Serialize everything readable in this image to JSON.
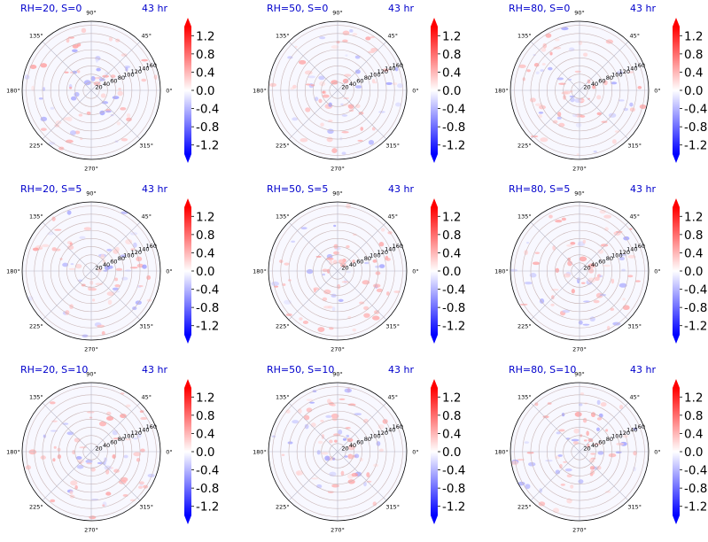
{
  "figure": {
    "common": {
      "type": "polar-heatmap",
      "time_label": "43 hr",
      "radial_ticks": [
        "20",
        "40",
        "60",
        "80",
        "100",
        "120",
        "140",
        "160"
      ],
      "angle_ticks": [
        "0°",
        "45°",
        "90°",
        "135°",
        "180°",
        "225°",
        "270°",
        "315°"
      ],
      "colorbar": {
        "cmap": "bwr",
        "range": [
          -1.4,
          1.4
        ],
        "ticks": [
          "1.2",
          "0.8",
          "0.4",
          "0.0",
          "-0.4",
          "-0.8",
          "-1.2"
        ],
        "extend": "both",
        "colors": {
          "max": "#ff0000",
          "mid": "#ffffff",
          "min": "#0000ff"
        }
      },
      "title_color": "#0000cc"
    },
    "panels": [
      {
        "title": "RH=20, S=0"
      },
      {
        "title": "RH=50, S=0"
      },
      {
        "title": "RH=80, S=0"
      },
      {
        "title": "RH=20, S=5"
      },
      {
        "title": "RH=50, S=5"
      },
      {
        "title": "RH=80, S=5"
      },
      {
        "title": "RH=20, S=10"
      },
      {
        "title": "RH=50, S=10"
      },
      {
        "title": "RH=80, S=10"
      }
    ]
  },
  "chart_data": [
    {
      "type": "heatmap",
      "projection": "polar",
      "title": "RH=20, S=0",
      "annotation": "43 hr",
      "rlim": [
        0,
        170
      ],
      "clim": [
        -1.4,
        1.4
      ],
      "colorbar_ticks": [
        1.2,
        0.8,
        0.4,
        0.0,
        -0.4,
        -0.8,
        -1.2
      ]
    },
    {
      "type": "heatmap",
      "projection": "polar",
      "title": "RH=50, S=0",
      "annotation": "43 hr",
      "rlim": [
        0,
        170
      ],
      "clim": [
        -1.4,
        1.4
      ],
      "colorbar_ticks": [
        1.2,
        0.8,
        0.4,
        0.0,
        -0.4,
        -0.8,
        -1.2
      ]
    },
    {
      "type": "heatmap",
      "projection": "polar",
      "title": "RH=80, S=0",
      "annotation": "43 hr",
      "rlim": [
        0,
        170
      ],
      "clim": [
        -1.4,
        1.4
      ],
      "colorbar_ticks": [
        1.2,
        0.8,
        0.4,
        0.0,
        -0.4,
        -0.8,
        -1.2
      ]
    },
    {
      "type": "heatmap",
      "projection": "polar",
      "title": "RH=20, S=5",
      "annotation": "43 hr",
      "rlim": [
        0,
        170
      ],
      "clim": [
        -1.4,
        1.4
      ],
      "colorbar_ticks": [
        1.2,
        0.8,
        0.4,
        0.0,
        -0.4,
        -0.8,
        -1.2
      ]
    },
    {
      "type": "heatmap",
      "projection": "polar",
      "title": "RH=50, S=5",
      "annotation": "43 hr",
      "rlim": [
        0,
        170
      ],
      "clim": [
        -1.4,
        1.4
      ],
      "colorbar_ticks": [
        1.2,
        0.8,
        0.4,
        0.0,
        -0.4,
        -0.8,
        -1.2
      ]
    },
    {
      "type": "heatmap",
      "projection": "polar",
      "title": "RH=80, S=5",
      "annotation": "43 hr",
      "rlim": [
        0,
        170
      ],
      "clim": [
        -1.4,
        1.4
      ],
      "colorbar_ticks": [
        1.2,
        0.8,
        0.4,
        0.0,
        -0.4,
        -0.8,
        -1.2
      ]
    },
    {
      "type": "heatmap",
      "projection": "polar",
      "title": "RH=20, S=10",
      "annotation": "43 hr",
      "rlim": [
        0,
        170
      ],
      "clim": [
        -1.4,
        1.4
      ],
      "colorbar_ticks": [
        1.2,
        0.8,
        0.4,
        0.0,
        -0.4,
        -0.8,
        -1.2
      ]
    },
    {
      "type": "heatmap",
      "projection": "polar",
      "title": "RH=50, S=10",
      "annotation": "43 hr",
      "rlim": [
        0,
        170
      ],
      "clim": [
        -1.4,
        1.4
      ],
      "colorbar_ticks": [
        1.2,
        0.8,
        0.4,
        0.0,
        -0.4,
        -0.8,
        -1.2
      ]
    },
    {
      "type": "heatmap",
      "projection": "polar",
      "title": "RH=80, S=10",
      "annotation": "43 hr",
      "rlim": [
        0,
        170
      ],
      "clim": [
        -1.4,
        1.4
      ],
      "colorbar_ticks": [
        1.2,
        0.8,
        0.4,
        0.0,
        -0.4,
        -0.8,
        -1.2
      ]
    }
  ]
}
